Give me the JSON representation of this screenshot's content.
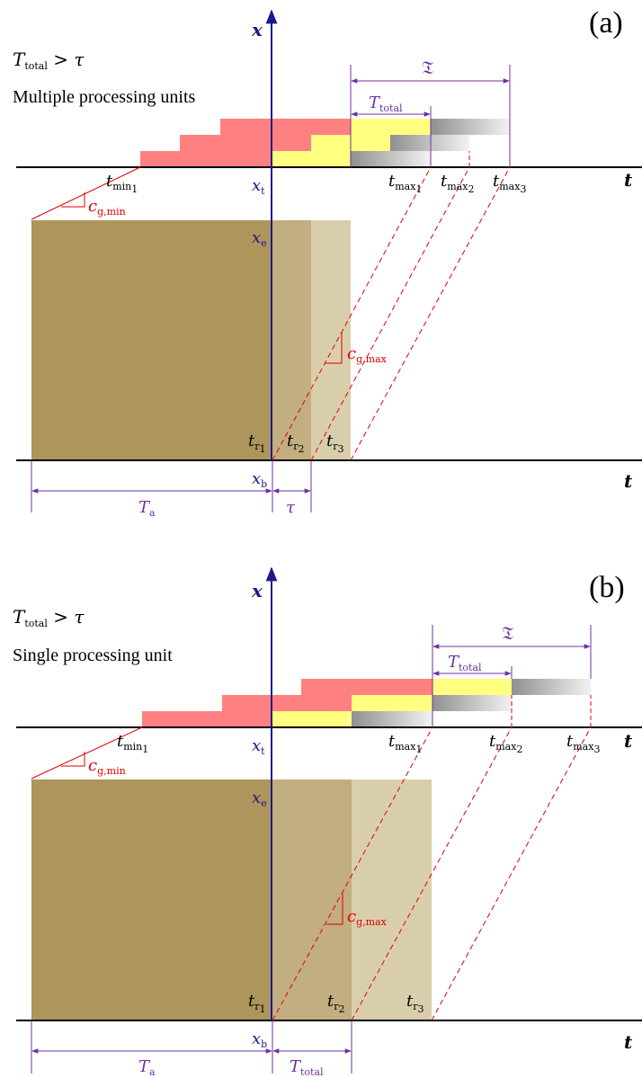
{
  "panels": [
    {
      "id": "a",
      "label": "(a)",
      "condition": "T",
      "condition_sub": "total",
      "condition_rest": " > τ",
      "description": "Multiple processing units",
      "axis_x": "x",
      "axis_t": "t",
      "labels": {
        "xt": "x",
        "xt_sub": "t",
        "xe": "x",
        "xe_sub": "e",
        "xb": "x",
        "xb_sub": "b",
        "tmin": "t",
        "tmin_sub": "min",
        "tmax1": "t",
        "tmax2": "t",
        "tmax3": "t",
        "tmax_sub": "max",
        "tr": "t",
        "tr_sub": "r",
        "cgmin": "c",
        "cgmin_sub": "g,min",
        "cgmax": "c",
        "cgmax_sub": "g,max",
        "frak": "𝔗",
        "ttotal": "T",
        "ttotal_sub": "total",
        "ta": "T",
        "ta_sub": "a",
        "bottom_right": "τ"
      }
    },
    {
      "id": "b",
      "label": "(b)",
      "condition": "T",
      "condition_sub": "total",
      "condition_rest": " > τ",
      "description": "Single processing unit",
      "axis_x": "x",
      "axis_t": "t",
      "labels": {
        "xt": "x",
        "xt_sub": "t",
        "xe": "x",
        "xe_sub": "e",
        "xb": "x",
        "xb_sub": "b",
        "tmin": "t",
        "tmin_sub": "min",
        "tmax1": "t",
        "tmax2": "t",
        "tmax3": "t",
        "tmax_sub": "max",
        "tr": "t",
        "tr_sub": "r",
        "cgmin": "c",
        "cgmin_sub": "g,min",
        "cgmax": "c",
        "cgmax_sub": "g,max",
        "frak": "𝔗",
        "ttotal": "T",
        "ttotal_sub": "total",
        "ta": "T",
        "ta_sub": "a",
        "bottom_right": "T",
        "bottom_right_sub": "total"
      }
    }
  ],
  "index_labels": [
    "1",
    "2",
    "3"
  ],
  "colors": {
    "red_bar": "#ff8080",
    "yellow_bar": "#ffff80",
    "gray_start": "#909090",
    "gray_end": "#f2f2f2",
    "block_dark": "#ad955b",
    "block_mid": "#c2ae80",
    "block_light": "#d9ceac",
    "axis_blue": "#1a1a8c",
    "purple": "#7030a0",
    "red_line": "#e00000"
  }
}
